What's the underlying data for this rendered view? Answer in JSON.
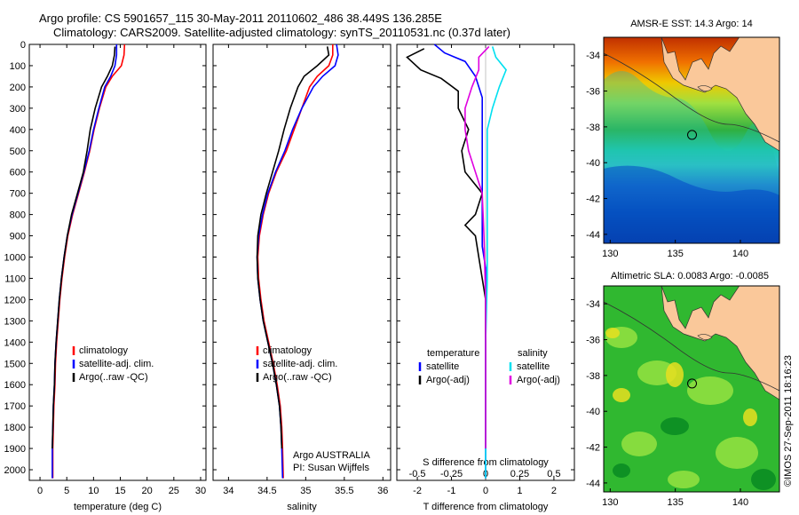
{
  "header": {
    "line1": "Argo profile: CS 5901657_115 30-May-2011 20110602_486 38.449S 136.285E",
    "line2": "Climatology: CARS2009. Satellite-adjusted climatology: synTS_20110531.nc (0.37d later)"
  },
  "credit": "©IMOS 27-Sep-2011 18:16:23",
  "colors": {
    "climatology": "#ff0000",
    "satellite": "#0000ff",
    "argo": "#000000",
    "sat_salinity": "#00e0f0",
    "argo_salinity": "#e000e0"
  },
  "chart_data": [
    {
      "type": "line",
      "xlabel": "temperature (deg C)",
      "xlim": [
        -2,
        31
      ],
      "xticks": [
        0,
        5,
        10,
        15,
        20,
        25,
        30
      ],
      "ylim": [
        0,
        2050
      ],
      "yticks": [
        0,
        100,
        200,
        300,
        400,
        500,
        600,
        700,
        800,
        900,
        1000,
        1100,
        1200,
        1300,
        1400,
        1500,
        1600,
        1700,
        1800,
        1900,
        2000
      ],
      "legend": [
        "climatology",
        "satellite-adj. clim.",
        "Argo(..raw -QC)"
      ],
      "legend_position": "lower-center",
      "series": [
        {
          "name": "climatology",
          "color": "#ff0000",
          "x": [
            15.8,
            15.7,
            15.2,
            13.5,
            12.3,
            11.1,
            10.1,
            9.3,
            8.3,
            7.2,
            6.1,
            5.2,
            4.6,
            4.1,
            3.7,
            3.4,
            3.1,
            2.9,
            2.8,
            2.6,
            2.5,
            2.4,
            2.4
          ],
          "y": [
            0,
            50,
            100,
            150,
            200,
            300,
            400,
            500,
            600,
            700,
            800,
            900,
            1000,
            1100,
            1200,
            1300,
            1400,
            1500,
            1600,
            1700,
            1800,
            1900,
            2040
          ]
        },
        {
          "name": "satellite",
          "color": "#0000ff",
          "x": [
            14.3,
            14.3,
            14.0,
            13.2,
            12.1,
            11.0,
            10.0,
            9.2,
            8.2,
            7.1,
            6.0,
            5.1,
            4.5,
            4.0,
            3.6,
            3.3,
            3.0,
            2.8,
            2.7,
            2.5,
            2.4,
            2.3,
            2.3
          ],
          "y": [
            0,
            50,
            100,
            150,
            200,
            300,
            400,
            500,
            600,
            700,
            800,
            900,
            1000,
            1100,
            1200,
            1300,
            1400,
            1500,
            1600,
            1700,
            1800,
            1900,
            2040
          ]
        },
        {
          "name": "Argo",
          "color": "#000000",
          "x": [
            14.0,
            13.9,
            13.5,
            12.6,
            11.5,
            10.3,
            9.4,
            8.8,
            8.1,
            7.0,
            5.9,
            5.1,
            4.5,
            4.0,
            3.6,
            3.3,
            3.0,
            2.8,
            2.7,
            2.5,
            2.4,
            2.3
          ],
          "y": [
            10,
            50,
            100,
            150,
            200,
            300,
            400,
            500,
            600,
            700,
            800,
            900,
            1000,
            1100,
            1200,
            1300,
            1400,
            1500,
            1600,
            1700,
            1800,
            1900
          ]
        }
      ]
    },
    {
      "type": "line",
      "xlabel": "salinity",
      "xlim": [
        33.8,
        36.1
      ],
      "xticks": [
        34,
        34.5,
        35,
        35.5,
        36
      ],
      "ylim": [
        0,
        2050
      ],
      "legend": [
        "climatology",
        "satellite-adj. clim.",
        "Argo(..raw -QC)"
      ],
      "legend_position": "lower-center",
      "annotation": [
        "Argo AUSTRALIA",
        "PI: Susan Wijffels"
      ],
      "series": [
        {
          "name": "climatology",
          "color": "#ff0000",
          "x": [
            35.35,
            35.35,
            35.3,
            35.15,
            35.05,
            34.95,
            34.85,
            34.75,
            34.62,
            34.52,
            34.45,
            34.4,
            34.38,
            34.39,
            34.42,
            34.46,
            34.52,
            34.58,
            34.63,
            34.67,
            34.69,
            34.7,
            34.71
          ],
          "y": [
            0,
            50,
            100,
            150,
            200,
            300,
            400,
            500,
            600,
            700,
            800,
            900,
            1000,
            1100,
            1200,
            1300,
            1400,
            1500,
            1600,
            1700,
            1800,
            1900,
            2040
          ]
        },
        {
          "name": "satellite",
          "color": "#0000ff",
          "x": [
            35.4,
            35.42,
            35.38,
            35.22,
            35.1,
            34.95,
            34.83,
            34.73,
            34.61,
            34.51,
            34.44,
            34.39,
            34.37,
            34.38,
            34.41,
            34.45,
            34.51,
            34.57,
            34.62,
            34.66,
            34.68,
            34.69,
            34.7
          ],
          "y": [
            0,
            50,
            100,
            150,
            200,
            300,
            400,
            500,
            600,
            700,
            800,
            900,
            1000,
            1100,
            1200,
            1300,
            1400,
            1500,
            1600,
            1700,
            1800,
            1900,
            2040
          ]
        },
        {
          "name": "Argo",
          "color": "#000000",
          "x": [
            35.28,
            35.3,
            35.15,
            34.98,
            34.9,
            34.8,
            34.72,
            34.65,
            34.57,
            34.49,
            34.42,
            34.38,
            34.37,
            34.38,
            34.41,
            34.45,
            34.51,
            34.57,
            34.62,
            34.66,
            34.68,
            34.69
          ],
          "y": [
            10,
            50,
            100,
            150,
            200,
            300,
            400,
            500,
            600,
            700,
            800,
            900,
            1000,
            1100,
            1200,
            1300,
            1400,
            1500,
            1600,
            1700,
            1800,
            1900
          ]
        }
      ]
    },
    {
      "type": "line",
      "xlabel": "T difference from climatology",
      "xlabel_top": "S difference from climatology",
      "xlim": [
        -2.6,
        2.6
      ],
      "xticks": [
        -2,
        -1,
        0,
        1,
        2
      ],
      "xticks_top": [
        "-0.5",
        "-0.25",
        "0",
        "0.25",
        "0.5"
      ],
      "ylim": [
        0,
        2050
      ],
      "legend_left": [
        "temperature",
        "satellite",
        "Argo(-adj)"
      ],
      "legend_right": [
        "salinity",
        "satellite",
        "Argo(-adj)"
      ],
      "legend_position": "lower-center",
      "series": [
        {
          "name": "temperature satellite",
          "color": "#0000ff",
          "x": [
            -1.5,
            -1.2,
            -0.6,
            -0.3,
            -0.1,
            -0.1,
            -0.1,
            -0.1,
            -0.1,
            -0.1,
            -0.1,
            -0.1,
            0,
            0,
            0,
            0,
            0,
            0
          ],
          "y": [
            0,
            40,
            80,
            150,
            250,
            350,
            450,
            550,
            650,
            750,
            850,
            950,
            1050,
            1200,
            1400,
            1600,
            1800,
            2040
          ]
        },
        {
          "name": "temperature Argo",
          "color": "#000000",
          "x": [
            -1.8,
            -2.3,
            -1.9,
            -1.3,
            -0.8,
            -0.8,
            -0.5,
            -0.7,
            -0.6,
            -0.1,
            -0.3,
            -0.6,
            -0.3,
            -0.2,
            0,
            0,
            0,
            0
          ],
          "y": [
            20,
            60,
            120,
            160,
            220,
            300,
            400,
            500,
            600,
            700,
            800,
            850,
            900,
            1000,
            1200,
            1400,
            1600,
            1900
          ]
        },
        {
          "name": "salinity satellite",
          "color": "#00e0f0",
          "x": [
            0.2,
            0.3,
            0.6,
            0.4,
            0.2,
            0.05,
            0.05,
            0.05,
            0.05,
            0.05,
            0.0,
            0,
            0
          ],
          "y": [
            10,
            60,
            120,
            200,
            300,
            400,
            500,
            700,
            900,
            1100,
            1400,
            1700,
            2040
          ]
        },
        {
          "name": "salinity Argo",
          "color": "#e000e0",
          "x": [
            0.1,
            -0.2,
            -0.2,
            -0.4,
            -0.6,
            -0.6,
            -0.5,
            -0.3,
            -0.1,
            -0.05,
            0,
            0
          ],
          "y": [
            10,
            60,
            120,
            200,
            300,
            400,
            500,
            600,
            700,
            900,
            1200,
            1900
          ]
        }
      ]
    },
    {
      "type": "heatmap",
      "title": "AMSR-E SST: 14.3 Argo: 14",
      "xlim": [
        129.5,
        143
      ],
      "ylim": [
        -44.5,
        -33
      ],
      "xticks": [
        130,
        135,
        140
      ],
      "yticks": [
        -34,
        -36,
        -38,
        -40,
        -42,
        -44
      ],
      "marker": {
        "lon": 136.285,
        "lat": -38.449
      }
    },
    {
      "type": "heatmap",
      "title": "Altimetric SLA: 0.0083 Argo: -0.0085",
      "xlim": [
        129.5,
        143
      ],
      "ylim": [
        -44.5,
        -33
      ],
      "xticks": [
        130,
        135,
        140
      ],
      "yticks": [
        -34,
        -36,
        -38,
        -40,
        -42,
        -44
      ],
      "marker": {
        "lon": 136.285,
        "lat": -38.449
      }
    }
  ]
}
